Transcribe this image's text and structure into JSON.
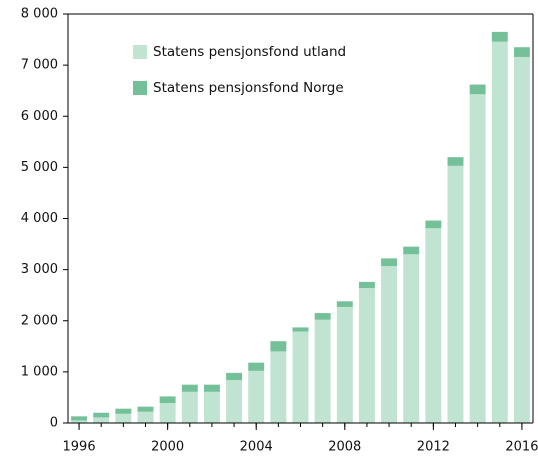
{
  "chart_data": {
    "type": "stacked-bar",
    "x": [
      1996,
      1997,
      1998,
      1999,
      2000,
      2001,
      2002,
      2003,
      2004,
      2005,
      2006,
      2007,
      2008,
      2009,
      2010,
      2011,
      2012,
      2013,
      2014,
      2015,
      2016
    ],
    "series": [
      {
        "name": "Statens pensjonsfond utland",
        "color": "#c0e4d1",
        "values": [
          50,
          110,
          180,
          220,
          390,
          610,
          610,
          840,
          1020,
          1400,
          1790,
          2020,
          2270,
          2640,
          3070,
          3300,
          3810,
          5030,
          6430,
          7460,
          7160
        ]
      },
      {
        "name": "Statens pensjonsfond Norge",
        "color": "#74c098",
        "values": [
          80,
          90,
          100,
          100,
          130,
          140,
          140,
          140,
          160,
          200,
          80,
          130,
          110,
          120,
          150,
          150,
          150,
          170,
          190,
          190,
          190
        ]
      }
    ],
    "xlim": [
      1995.5,
      2016.5
    ],
    "xticks": [
      1996,
      2000,
      2004,
      2008,
      2012,
      2016
    ],
    "ylim": [
      0,
      8000
    ],
    "yticks": [
      0,
      {
        "value": 1000,
        "label": "1 000"
      },
      {
        "value": 2000,
        "label": "2 000"
      },
      {
        "value": 3000,
        "label": "3 000"
      },
      {
        "value": 4000,
        "label": "4 000"
      },
      {
        "value": 5000,
        "label": "5 000"
      },
      {
        "value": 6000,
        "label": "6 000"
      },
      {
        "value": 7000,
        "label": "7 000"
      },
      {
        "value": 8000,
        "label": "8 000"
      }
    ],
    "grid": false
  }
}
